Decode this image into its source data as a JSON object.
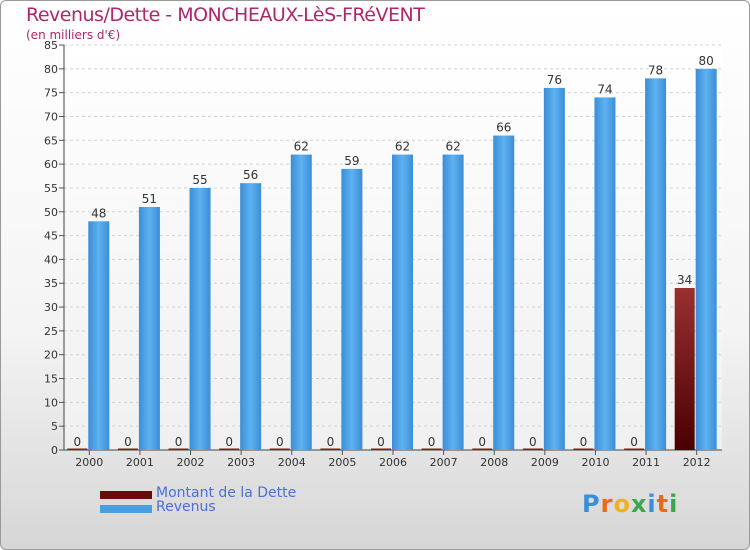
{
  "title": "Revenus/Dette - MONCHEAUX-LèS-FRéVENT",
  "subtitle": "(en milliers d'€)",
  "colors": {
    "dette": "#6b0a0a",
    "revenus": "#4a9fe0",
    "title": "#b0266d"
  },
  "logo": {
    "letters": [
      "P",
      "r",
      "o",
      "x",
      "i",
      "t",
      "i"
    ]
  },
  "chart_data": {
    "type": "bar",
    "categories": [
      "2000",
      "2001",
      "2002",
      "2003",
      "2004",
      "2005",
      "2006",
      "2007",
      "2008",
      "2009",
      "2010",
      "2011",
      "2012"
    ],
    "series": [
      {
        "name": "Montant de la Dette",
        "values": [
          0,
          0,
          0,
          0,
          0,
          0,
          0,
          0,
          0,
          0,
          0,
          0,
          34
        ]
      },
      {
        "name": "Revenus",
        "values": [
          48,
          51,
          55,
          56,
          62,
          59,
          62,
          62,
          66,
          76,
          74,
          78,
          80
        ]
      }
    ],
    "ylim": [
      0,
      85
    ],
    "yticks": [
      0,
      5,
      10,
      15,
      20,
      25,
      30,
      35,
      40,
      45,
      50,
      55,
      60,
      65,
      70,
      75,
      80,
      85
    ],
    "grid": true,
    "legend_position": "bottom-left"
  }
}
